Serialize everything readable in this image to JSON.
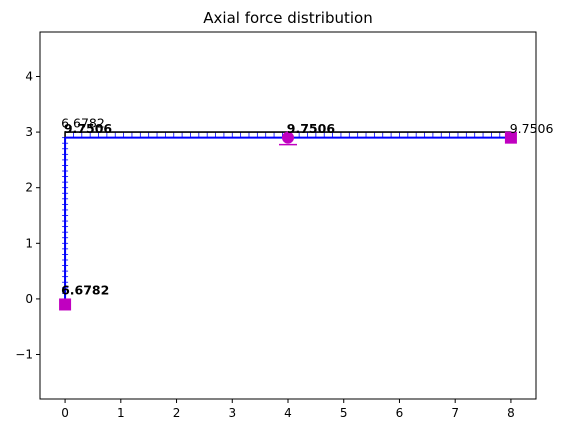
{
  "chart_data": {
    "type": "line",
    "title": "Axial force distribution",
    "xlabel": "",
    "ylabel": "",
    "xlim": [
      -0.45,
      8.45
    ],
    "ylim": [
      -1.8,
      4.8
    ],
    "grid": false,
    "xticks": [
      0,
      1,
      2,
      3,
      4,
      5,
      6,
      7,
      8
    ],
    "yticks": [
      -1,
      0,
      1,
      2,
      3,
      4
    ],
    "xtick_labels": [
      "0",
      "1",
      "2",
      "3",
      "4",
      "5",
      "6",
      "7",
      "8"
    ],
    "ytick_labels": [
      "−1",
      "0",
      "1",
      "2",
      "3",
      "4"
    ],
    "series": [
      {
        "name": "structure",
        "color": "#000000",
        "x": [
          0,
          0,
          8
        ],
        "y": [
          0,
          3,
          3
        ]
      },
      {
        "name": "column axial force",
        "color": "#0000ff",
        "x": [
          0,
          0
        ],
        "y": [
          -0.1,
          2.9
        ],
        "value": 6.6782
      },
      {
        "name": "beam axial force",
        "color": "#0000ff",
        "x": [
          0,
          8
        ],
        "y": [
          2.9,
          2.9
        ],
        "value": 9.7506
      }
    ],
    "supports": [
      {
        "type": "square",
        "x": 0,
        "y": -0.1,
        "color": "#c000c0"
      },
      {
        "type": "circle",
        "x": 4,
        "y": 2.9,
        "color": "#c000c0"
      },
      {
        "type": "square",
        "x": 8,
        "y": 2.9,
        "color": "#c000c0"
      }
    ],
    "annotations": [
      {
        "text": "6.6782",
        "x": 0,
        "y": 0.08,
        "bold": true
      },
      {
        "text": "6.6782",
        "x": 0,
        "y": 3.08,
        "bold": false
      },
      {
        "text": "9.7506",
        "x": 0.05,
        "y": 2.98,
        "bold": true
      },
      {
        "text": "9.7506",
        "x": 4.05,
        "y": 2.98,
        "bold": true
      },
      {
        "text": "9.7506",
        "x": 8.05,
        "y": 2.98,
        "bold": false
      }
    ]
  }
}
